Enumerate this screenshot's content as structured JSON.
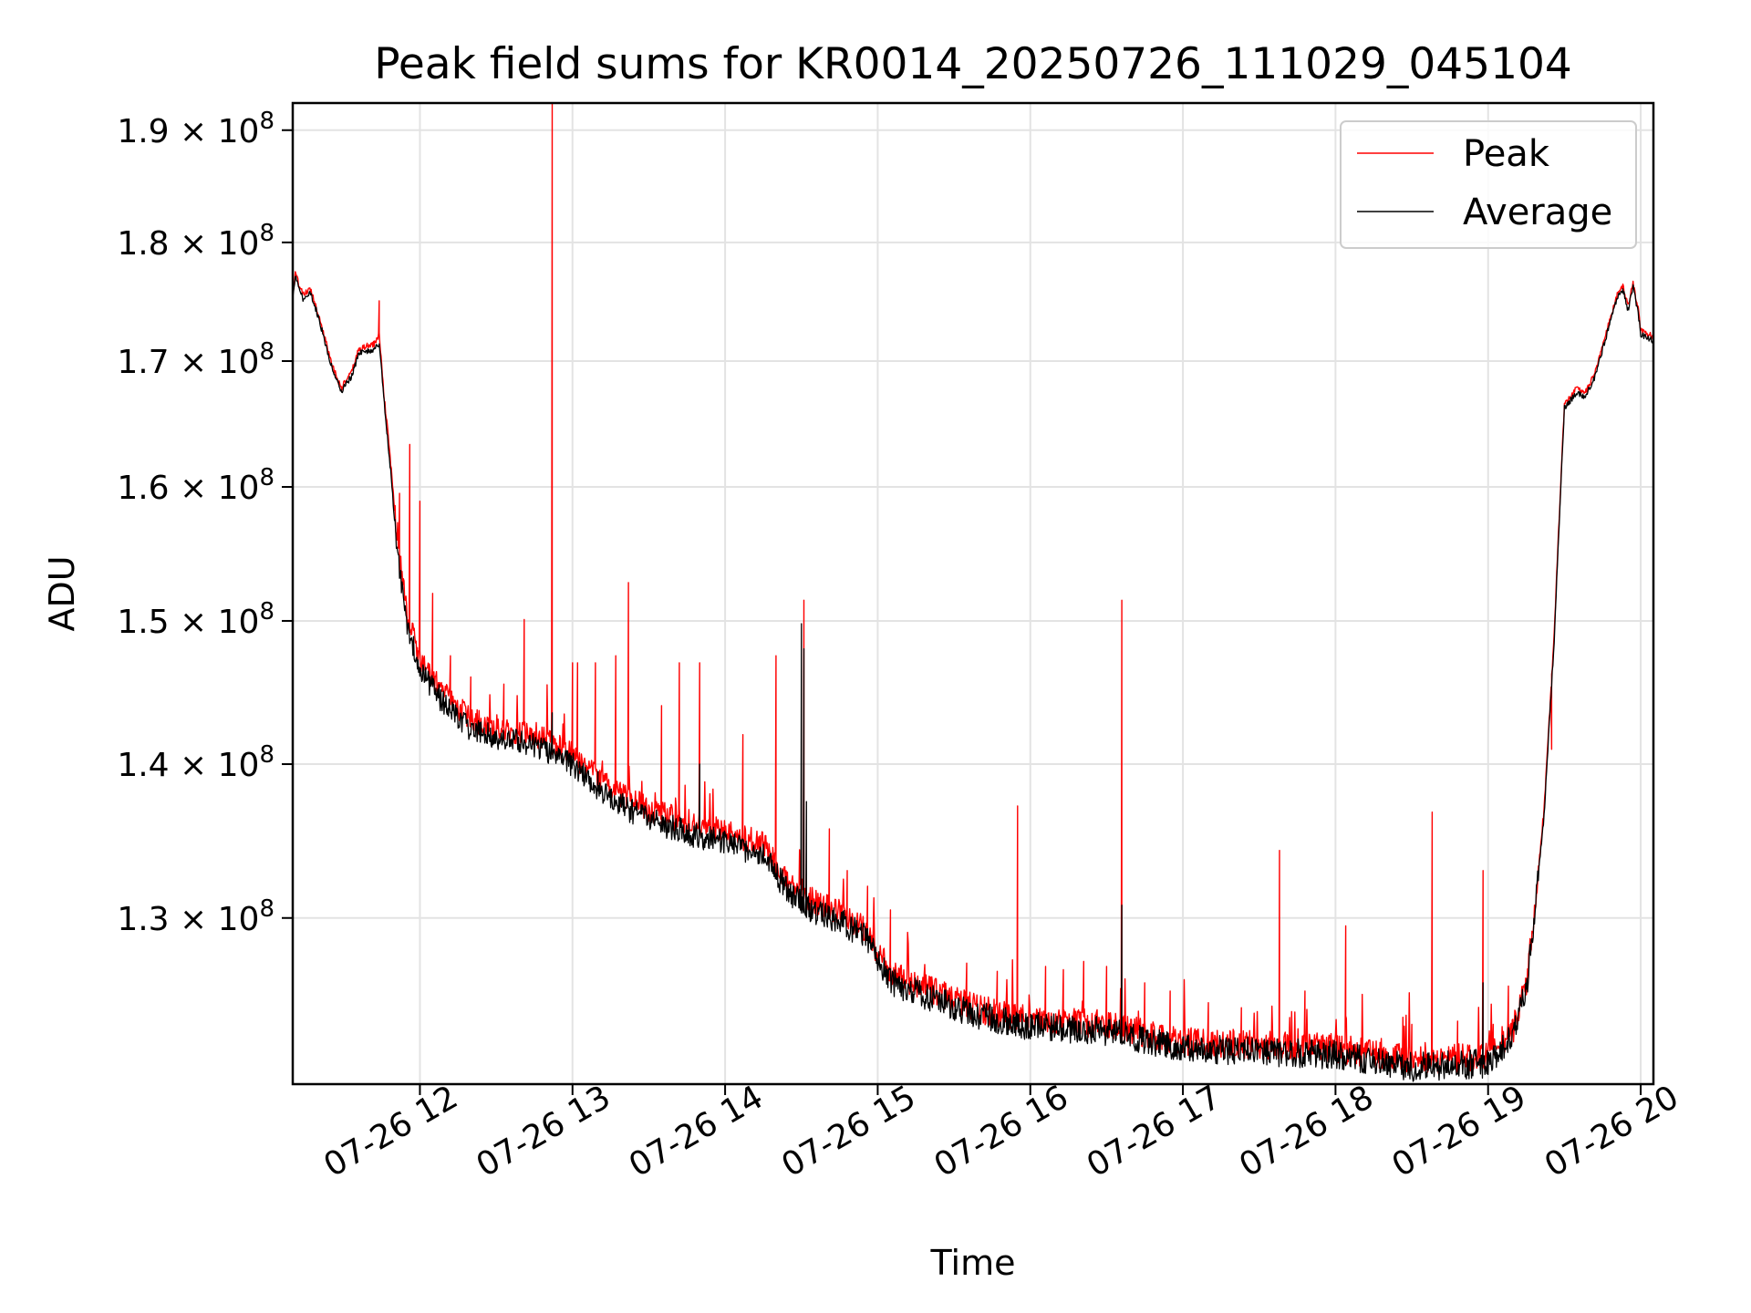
{
  "chart_data": {
    "type": "line",
    "title": "Peak field sums for KR0014_20250726_111029_045104",
    "xlabel": "Time",
    "ylabel": "ADU",
    "yscale": "log",
    "ylim": [
      120000000,
      192500000
    ],
    "xlim": [
      "2025-07-26 11:10",
      "2025-07-26 20:05"
    ],
    "grid": true,
    "legend_position": "top-right",
    "x_ticks": [
      {
        "value": "2025-07-26 12:00",
        "label": "07-26 12"
      },
      {
        "value": "2025-07-26 13:00",
        "label": "07-26 13"
      },
      {
        "value": "2025-07-26 14:00",
        "label": "07-26 14"
      },
      {
        "value": "2025-07-26 15:00",
        "label": "07-26 15"
      },
      {
        "value": "2025-07-26 16:00",
        "label": "07-26 16"
      },
      {
        "value": "2025-07-26 17:00",
        "label": "07-26 17"
      },
      {
        "value": "2025-07-26 18:00",
        "label": "07-26 18"
      },
      {
        "value": "2025-07-26 19:00",
        "label": "07-26 19"
      },
      {
        "value": "2025-07-26 20:00",
        "label": "07-26 20"
      }
    ],
    "y_ticks": [
      {
        "value": 130000000,
        "mantissa": "1.3",
        "exponent": "8"
      },
      {
        "value": 140000000,
        "mantissa": "1.4",
        "exponent": "8"
      },
      {
        "value": 150000000,
        "mantissa": "1.5",
        "exponent": "8"
      },
      {
        "value": 160000000,
        "mantissa": "1.6",
        "exponent": "8"
      },
      {
        "value": 170000000,
        "mantissa": "1.7",
        "exponent": "8"
      },
      {
        "value": 180000000,
        "mantissa": "1.8",
        "exponent": "8"
      },
      {
        "value": 190000000,
        "mantissa": "1.9",
        "exponent": "8"
      }
    ],
    "series": [
      {
        "name": "Peak",
        "color": "#ff0000",
        "baseline": [
          [
            "2025-07-26 11:10",
            175500000
          ],
          [
            "2025-07-26 11:11",
            177300000
          ],
          [
            "2025-07-26 11:14",
            175500000
          ],
          [
            "2025-07-26 11:17",
            176000000
          ],
          [
            "2025-07-26 11:20",
            174000000
          ],
          [
            "2025-07-26 11:25",
            170000000
          ],
          [
            "2025-07-26 11:29",
            167800000
          ],
          [
            "2025-07-26 11:33",
            169000000
          ],
          [
            "2025-07-26 11:36",
            171000000
          ],
          [
            "2025-07-26 11:42",
            171400000
          ],
          [
            "2025-07-26 11:44",
            172200000
          ],
          [
            "2025-07-26 11:46",
            167000000
          ],
          [
            "2025-07-26 11:48",
            163000000
          ],
          [
            "2025-07-26 11:51",
            156000000
          ],
          [
            "2025-07-26 11:55",
            150500000
          ],
          [
            "2025-07-26 12:00",
            147200000
          ],
          [
            "2025-07-26 12:10",
            144800000
          ],
          [
            "2025-07-26 12:20",
            143000000
          ],
          [
            "2025-07-26 12:35",
            142300000
          ],
          [
            "2025-07-26 12:45",
            142000000
          ],
          [
            "2025-07-26 13:00",
            140700000
          ],
          [
            "2025-07-26 13:15",
            138300000
          ],
          [
            "2025-07-26 13:30",
            137000000
          ],
          [
            "2025-07-26 13:50",
            135900000
          ],
          [
            "2025-07-26 14:00",
            135500000
          ],
          [
            "2025-07-26 14:15",
            134700000
          ],
          [
            "2025-07-26 14:25",
            132300000
          ],
          [
            "2025-07-26 14:35",
            131000000
          ],
          [
            "2025-07-26 14:45",
            130300000
          ],
          [
            "2025-07-26 14:55",
            129300000
          ],
          [
            "2025-07-26 15:05",
            126600000
          ],
          [
            "2025-07-26 15:20",
            125600000
          ],
          [
            "2025-07-26 15:40",
            124400000
          ],
          [
            "2025-07-26 16:00",
            123800000
          ],
          [
            "2025-07-26 16:30",
            123500000
          ],
          [
            "2025-07-26 17:00",
            122500000
          ],
          [
            "2025-07-26 17:30",
            122300000
          ],
          [
            "2025-07-26 18:00",
            122100000
          ],
          [
            "2025-07-26 18:30",
            121400000
          ],
          [
            "2025-07-26 19:00",
            121600000
          ],
          [
            "2025-07-26 19:10",
            123300000
          ],
          [
            "2025-07-26 19:15",
            126000000
          ],
          [
            "2025-07-26 19:18",
            130000000
          ],
          [
            "2025-07-26 19:22",
            137000000
          ],
          [
            "2025-07-26 19:26",
            149000000
          ],
          [
            "2025-07-26 19:30",
            166500000
          ],
          [
            "2025-07-26 19:35",
            167800000
          ],
          [
            "2025-07-26 19:38",
            167300000
          ],
          [
            "2025-07-26 19:42",
            169000000
          ],
          [
            "2025-07-26 19:46",
            172000000
          ],
          [
            "2025-07-26 19:51",
            175700000
          ],
          [
            "2025-07-26 19:53",
            176300000
          ],
          [
            "2025-07-26 19:55",
            174500000
          ],
          [
            "2025-07-26 19:57",
            176500000
          ],
          [
            "2025-07-26 19:59",
            174300000
          ],
          [
            "2025-07-26 20:00",
            172500000
          ],
          [
            "2025-07-26 20:05",
            172000000
          ]
        ],
        "spikes": [
          [
            "2025-07-26 11:44",
            175000000
          ],
          [
            "2025-07-26 11:52",
            159500000
          ],
          [
            "2025-07-26 11:56",
            163300000
          ],
          [
            "2025-07-26 12:00",
            158900000
          ],
          [
            "2025-07-26 12:05",
            152000000
          ],
          [
            "2025-07-26 12:12",
            147500000
          ],
          [
            "2025-07-26 12:20",
            146000000
          ],
          [
            "2025-07-26 12:33",
            145500000
          ],
          [
            "2025-07-26 12:41",
            150100000
          ],
          [
            "2025-07-26 12:52",
            192500000
          ],
          [
            "2025-07-26 13:00",
            147000000
          ],
          [
            "2025-07-26 13:02",
            147000000
          ],
          [
            "2025-07-26 13:09",
            147000000
          ],
          [
            "2025-07-26 13:17",
            147500000
          ],
          [
            "2025-07-26 13:22",
            152800000
          ],
          [
            "2025-07-26 13:35",
            144000000
          ],
          [
            "2025-07-26 13:42",
            147000000
          ],
          [
            "2025-07-26 13:50",
            147000000
          ],
          [
            "2025-07-26 14:07",
            142000000
          ],
          [
            "2025-07-26 14:20",
            147500000
          ],
          [
            "2025-07-26 14:31",
            151500000
          ],
          [
            "2025-07-26 14:41",
            135700000
          ],
          [
            "2025-07-26 14:48",
            133000000
          ],
          [
            "2025-07-26 14:56",
            132000000
          ],
          [
            "2025-07-26 15:05",
            130500000
          ],
          [
            "2025-07-26 15:35",
            127200000
          ],
          [
            "2025-07-26 15:47",
            126700000
          ],
          [
            "2025-07-26 15:55",
            137200000
          ],
          [
            "2025-07-26 16:06",
            127000000
          ],
          [
            "2025-07-26 16:13",
            126800000
          ],
          [
            "2025-07-26 16:21",
            127300000
          ],
          [
            "2025-07-26 16:30",
            127000000
          ],
          [
            "2025-07-26 16:36",
            151500000
          ],
          [
            "2025-07-26 16:45",
            126000000
          ],
          [
            "2025-07-26 16:55",
            125500000
          ],
          [
            "2025-07-26 17:10",
            124800000
          ],
          [
            "2025-07-26 17:23",
            124500000
          ],
          [
            "2025-07-26 17:38",
            134300000
          ],
          [
            "2025-07-26 17:48",
            125500000
          ],
          [
            "2025-07-26 18:04",
            129500000
          ],
          [
            "2025-07-26 18:30",
            123500000
          ],
          [
            "2025-07-26 18:38",
            136800000
          ],
          [
            "2025-07-26 18:48",
            123700000
          ],
          [
            "2025-07-26 18:58",
            133000000
          ],
          [
            "2025-07-26 19:02",
            123500000
          ],
          [
            "2025-07-26 19:08",
            125800000
          ],
          [
            "2025-07-26 19:25",
            141000000
          ]
        ]
      },
      {
        "name": "Average",
        "color": "#000000",
        "baseline": [
          [
            "2025-07-26 11:10",
            175200000
          ],
          [
            "2025-07-26 11:11",
            177000000
          ],
          [
            "2025-07-26 11:14",
            175200000
          ],
          [
            "2025-07-26 11:17",
            175700000
          ],
          [
            "2025-07-26 11:20",
            173700000
          ],
          [
            "2025-07-26 11:25",
            169700000
          ],
          [
            "2025-07-26 11:29",
            167500000
          ],
          [
            "2025-07-26 11:33",
            168700000
          ],
          [
            "2025-07-26 11:36",
            170600000
          ],
          [
            "2025-07-26 11:42",
            170900000
          ],
          [
            "2025-07-26 11:44",
            171500000
          ],
          [
            "2025-07-26 11:46",
            166500000
          ],
          [
            "2025-07-26 11:48",
            162300000
          ],
          [
            "2025-07-26 11:51",
            155300000
          ],
          [
            "2025-07-26 11:55",
            149800000
          ],
          [
            "2025-07-26 12:00",
            146500000
          ],
          [
            "2025-07-26 12:10",
            144000000
          ],
          [
            "2025-07-26 12:20",
            142300000
          ],
          [
            "2025-07-26 12:35",
            141600000
          ],
          [
            "2025-07-26 12:45",
            141300000
          ],
          [
            "2025-07-26 13:00",
            140000000
          ],
          [
            "2025-07-26 13:15",
            137600000
          ],
          [
            "2025-07-26 13:30",
            136300000
          ],
          [
            "2025-07-26 13:50",
            135200000
          ],
          [
            "2025-07-26 14:00",
            134800000
          ],
          [
            "2025-07-26 14:15",
            134000000
          ],
          [
            "2025-07-26 14:25",
            131600000
          ],
          [
            "2025-07-26 14:35",
            130400000
          ],
          [
            "2025-07-26 14:45",
            129800000
          ],
          [
            "2025-07-26 14:55",
            128800000
          ],
          [
            "2025-07-26 15:05",
            126100000
          ],
          [
            "2025-07-26 15:20",
            125100000
          ],
          [
            "2025-07-26 15:40",
            124000000
          ],
          [
            "2025-07-26 16:00",
            123400000
          ],
          [
            "2025-07-26 16:30",
            123100000
          ],
          [
            "2025-07-26 17:00",
            122100000
          ],
          [
            "2025-07-26 17:30",
            121900000
          ],
          [
            "2025-07-26 18:00",
            121700000
          ],
          [
            "2025-07-26 18:30",
            121000000
          ],
          [
            "2025-07-26 19:00",
            121200000
          ],
          [
            "2025-07-26 19:10",
            122900000
          ],
          [
            "2025-07-26 19:15",
            125600000
          ],
          [
            "2025-07-26 19:18",
            129600000
          ],
          [
            "2025-07-26 19:22",
            136600000
          ],
          [
            "2025-07-26 19:26",
            148500000
          ],
          [
            "2025-07-26 19:30",
            166200000
          ],
          [
            "2025-07-26 19:35",
            167500000
          ],
          [
            "2025-07-26 19:38",
            167000000
          ],
          [
            "2025-07-26 19:42",
            168700000
          ],
          [
            "2025-07-26 19:46",
            171700000
          ],
          [
            "2025-07-26 19:51",
            175400000
          ],
          [
            "2025-07-26 19:53",
            176000000
          ],
          [
            "2025-07-26 19:55",
            174200000
          ],
          [
            "2025-07-26 19:57",
            176200000
          ],
          [
            "2025-07-26 19:59",
            174000000
          ],
          [
            "2025-07-26 20:00",
            172200000
          ],
          [
            "2025-07-26 20:05",
            171700000
          ]
        ],
        "spikes": [
          [
            "2025-07-26 14:30",
            149800000
          ],
          [
            "2025-07-26 14:31",
            148000000
          ],
          [
            "2025-07-26 14:32",
            137500000
          ],
          [
            "2025-07-26 16:36",
            130800000
          ],
          [
            "2025-07-26 12:52",
            143500000
          ],
          [
            "2025-07-26 13:10",
            139500000
          ],
          [
            "2025-07-26 13:50",
            140000000
          ],
          [
            "2025-07-26 18:58",
            126000000
          ]
        ]
      }
    ]
  }
}
